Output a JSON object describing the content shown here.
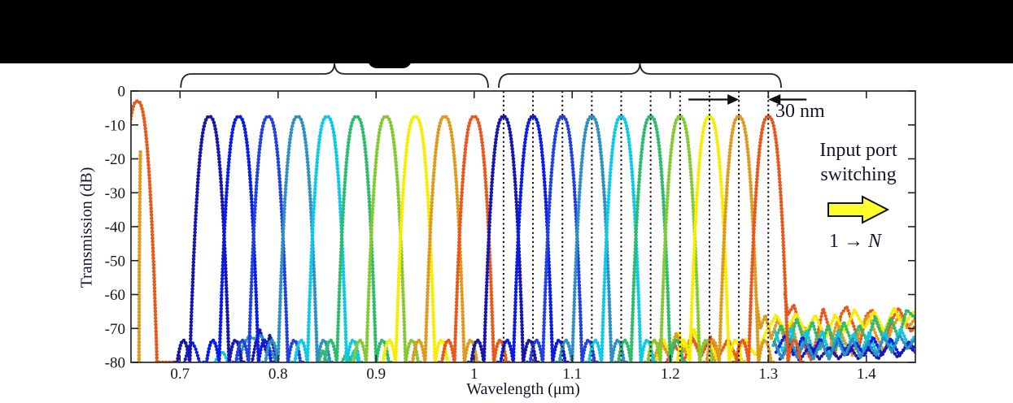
{
  "figure": {
    "y_axis": {
      "title": "Transmission (dB)",
      "tick_labels": [
        "0",
        "-10",
        "-20",
        "-30",
        "-40",
        "-50",
        "-60",
        "-70",
        "-80"
      ]
    },
    "x_axis": {
      "title": "Wavelength (μm)",
      "tick_labels": [
        "0.7",
        "0.8",
        "0.9",
        "1",
        "1.1",
        "1.2",
        "1.3",
        "1.4"
      ]
    },
    "annotations": {
      "spacing_label": "30 nm",
      "input_port_line1": "Input port",
      "input_port_line2": "switching",
      "port_range_prefix": "1 → ",
      "port_range_n": "N",
      "arrow_fill": "#ffff2e",
      "arrow_outline": "#111111"
    },
    "text_color": "#15152a",
    "axis_color": "#333333"
  },
  "chart_data": {
    "type": "line",
    "title": "",
    "xlabel": "Wavelength (μm)",
    "ylabel": "Transmission (dB)",
    "xlim": [
      0.65,
      1.45
    ],
    "ylim": [
      -80,
      0
    ],
    "x_ticks": [
      0.7,
      0.8,
      0.9,
      1.0,
      1.1,
      1.2,
      1.3,
      1.4
    ],
    "y_ticks": [
      0,
      -10,
      -20,
      -30,
      -40,
      -50,
      -60,
      -70,
      -80
    ],
    "grid": false,
    "channel_spacing_nm": 30,
    "channel_peak_db": -7.5,
    "palette": [
      "#1616AC",
      "#0A1BE6",
      "#2140E0",
      "#2E8FC0",
      "#0CC9E8",
      "#2EBB6E",
      "#85C832",
      "#F8EC00",
      "#DD9A1E",
      "#E8581A"
    ],
    "band_shape": {
      "depth_db": 72.5,
      "half_width_um": 0.02,
      "exponent": 2.5,
      "sidelobe_offset_um": 0.0265,
      "sidelobe_peak_db": -73.5,
      "sidelobe_fall_coef": 160000
    },
    "channels": [
      {
        "center_um": 0.73,
        "color_index": 0
      },
      {
        "center_um": 0.76,
        "color_index": 1
      },
      {
        "center_um": 0.79,
        "color_index": 2
      },
      {
        "center_um": 0.82,
        "color_index": 3
      },
      {
        "center_um": 0.85,
        "color_index": 4
      },
      {
        "center_um": 0.88,
        "color_index": 5
      },
      {
        "center_um": 0.91,
        "color_index": 6
      },
      {
        "center_um": 0.94,
        "color_index": 7
      },
      {
        "center_um": 0.97,
        "color_index": 8
      },
      {
        "center_um": 1.0,
        "color_index": 9
      },
      {
        "center_um": 1.03,
        "color_index": 0
      },
      {
        "center_um": 1.06,
        "color_index": 1
      },
      {
        "center_um": 1.09,
        "color_index": 2
      },
      {
        "center_um": 1.12,
        "color_index": 3
      },
      {
        "center_um": 1.15,
        "color_index": 4
      },
      {
        "center_um": 1.18,
        "color_index": 5
      },
      {
        "center_um": 1.21,
        "color_index": 6
      },
      {
        "center_um": 1.24,
        "color_index": 7
      },
      {
        "center_um": 1.27,
        "color_index": 8
      },
      {
        "center_um": 1.3,
        "color_index": 9
      }
    ],
    "extra_peak": {
      "center_um": 0.6565,
      "peak_db": -3,
      "depth_db": 77,
      "half_width_um": 0.02,
      "exponent": 2.5,
      "color": "#E8581A"
    },
    "edge_trace": {
      "color": "#DD9A1E",
      "points": [
        [
          0.6596,
          -18
        ],
        [
          0.659,
          -32
        ],
        [
          0.6585,
          -52
        ],
        [
          0.6581,
          -80
        ]
      ]
    },
    "dotted_lines_um": [
      1.03,
      1.06,
      1.09,
      1.12,
      1.15,
      1.18,
      1.21,
      1.24,
      1.27,
      1.3
    ],
    "measure_between_um": [
      1.27,
      1.3
    ],
    "braces_um": [
      {
        "from": 0.7008,
        "to": 1.0143
      },
      {
        "from": 1.0251,
        "to": 1.3131
      }
    ],
    "noise_traces": [
      {
        "color": "#E8581A",
        "points": [
          [
            1.317,
            -60
          ],
          [
            1.32,
            -66
          ],
          [
            1.326,
            -63
          ],
          [
            1.333,
            -70
          ],
          [
            1.338,
            -76
          ],
          [
            1.344,
            -79.5
          ],
          [
            1.35,
            -72
          ],
          [
            1.356,
            -64
          ],
          [
            1.362,
            -70
          ],
          [
            1.368,
            -78
          ],
          [
            1.374,
            -66
          ],
          [
            1.38,
            -63.5
          ],
          [
            1.388,
            -70
          ],
          [
            1.393,
            -75
          ],
          [
            1.4,
            -66
          ],
          [
            1.406,
            -64.5
          ],
          [
            1.413,
            -70
          ],
          [
            1.42,
            -73
          ],
          [
            1.427,
            -67
          ],
          [
            1.433,
            -64
          ],
          [
            1.44,
            -68
          ],
          [
            1.446,
            -71
          ],
          [
            1.45,
            -69
          ]
        ]
      },
      {
        "color": "#DD9A1E",
        "points": [
          [
            1.288,
            -62
          ],
          [
            1.292,
            -70
          ],
          [
            1.297,
            -66
          ],
          [
            1.303,
            -73
          ],
          [
            1.31,
            -67
          ],
          [
            1.317,
            -74
          ],
          [
            1.324,
            -68
          ],
          [
            1.331,
            -77
          ],
          [
            1.338,
            -70
          ],
          [
            1.346,
            -78
          ],
          [
            1.354,
            -70
          ],
          [
            1.362,
            -77
          ],
          [
            1.37,
            -68
          ],
          [
            1.378,
            -74
          ],
          [
            1.386,
            -78
          ],
          [
            1.394,
            -70
          ],
          [
            1.402,
            -66
          ],
          [
            1.41,
            -72
          ],
          [
            1.418,
            -77
          ],
          [
            1.426,
            -70
          ],
          [
            1.434,
            -66
          ],
          [
            1.442,
            -70
          ],
          [
            1.45,
            -67
          ]
        ]
      },
      {
        "color": "#F8EC00",
        "points": [
          [
            1.185,
            -80
          ],
          [
            1.193,
            -73
          ],
          [
            1.2,
            -78
          ],
          [
            1.208,
            -71
          ],
          [
            1.216,
            -77
          ],
          [
            1.224,
            -70
          ],
          [
            1.232,
            -77
          ],
          [
            1.24,
            -73
          ],
          [
            1.248,
            -79
          ],
          [
            1.257,
            -74
          ],
          [
            1.266,
            -79
          ],
          [
            1.276,
            -73
          ],
          [
            1.287,
            -78
          ],
          [
            1.298,
            -71
          ],
          [
            1.308,
            -66
          ],
          [
            1.318,
            -71
          ],
          [
            1.328,
            -65.5
          ],
          [
            1.338,
            -71
          ],
          [
            1.348,
            -66
          ],
          [
            1.358,
            -73
          ],
          [
            1.368,
            -66
          ],
          [
            1.378,
            -71
          ],
          [
            1.388,
            -64.5
          ],
          [
            1.398,
            -70
          ],
          [
            1.408,
            -65
          ],
          [
            1.418,
            -71
          ],
          [
            1.428,
            -64
          ],
          [
            1.438,
            -69
          ],
          [
            1.448,
            -65
          ],
          [
            1.45,
            -66
          ]
        ]
      },
      {
        "color": "#2EBB6E",
        "points": [
          [
            1.305,
            -75
          ],
          [
            1.313,
            -69
          ],
          [
            1.321,
            -75
          ],
          [
            1.329,
            -67
          ],
          [
            1.337,
            -74
          ],
          [
            1.345,
            -68
          ],
          [
            1.353,
            -76
          ],
          [
            1.361,
            -69
          ],
          [
            1.369,
            -76
          ],
          [
            1.377,
            -68
          ],
          [
            1.385,
            -74
          ],
          [
            1.393,
            -69
          ],
          [
            1.401,
            -74
          ],
          [
            1.409,
            -66.5
          ],
          [
            1.417,
            -73
          ],
          [
            1.425,
            -67
          ],
          [
            1.433,
            -73
          ],
          [
            1.441,
            -64.5
          ],
          [
            1.45,
            -67
          ]
        ]
      },
      {
        "color": "#0CC9E8",
        "points": [
          [
            1.307,
            -71
          ],
          [
            1.315,
            -77
          ],
          [
            1.323,
            -70
          ],
          [
            1.331,
            -77
          ],
          [
            1.339,
            -70.5
          ],
          [
            1.347,
            -78
          ],
          [
            1.355,
            -71
          ],
          [
            1.363,
            -78
          ],
          [
            1.371,
            -71
          ],
          [
            1.379,
            -77
          ],
          [
            1.387,
            -71.5
          ],
          [
            1.395,
            -77
          ],
          [
            1.403,
            -71
          ],
          [
            1.411,
            -78
          ],
          [
            1.419,
            -71
          ],
          [
            1.427,
            -76
          ],
          [
            1.435,
            -70
          ],
          [
            1.443,
            -75
          ],
          [
            1.45,
            -72
          ]
        ]
      },
      {
        "color": "#0A1BE6",
        "points": [
          [
            1.308,
            -77
          ],
          [
            1.317,
            -72
          ],
          [
            1.326,
            -78
          ],
          [
            1.335,
            -72.5
          ],
          [
            1.344,
            -78
          ],
          [
            1.353,
            -73
          ],
          [
            1.362,
            -79
          ],
          [
            1.371,
            -73
          ],
          [
            1.38,
            -78
          ],
          [
            1.389,
            -74
          ],
          [
            1.398,
            -78
          ],
          [
            1.407,
            -72.5
          ],
          [
            1.416,
            -78
          ],
          [
            1.425,
            -73
          ],
          [
            1.434,
            -78
          ],
          [
            1.443,
            -74
          ],
          [
            1.45,
            -76
          ]
        ]
      },
      {
        "color": "#1616AC",
        "points": [
          [
            1.312,
            -79
          ],
          [
            1.322,
            -75
          ],
          [
            1.332,
            -79.5
          ],
          [
            1.342,
            -75
          ],
          [
            1.352,
            -79
          ],
          [
            1.362,
            -75.5
          ],
          [
            1.372,
            -79
          ],
          [
            1.382,
            -75
          ],
          [
            1.392,
            -79
          ],
          [
            1.402,
            -76
          ],
          [
            1.412,
            -79
          ],
          [
            1.422,
            -75
          ],
          [
            1.432,
            -78.5
          ],
          [
            1.442,
            -75
          ],
          [
            1.45,
            -77
          ]
        ]
      },
      {
        "color": "#2E8FC0",
        "points": [
          [
            1.306,
            -74
          ],
          [
            1.314,
            -79
          ],
          [
            1.322,
            -73
          ],
          [
            1.33,
            -78.5
          ],
          [
            1.338,
            -73.5
          ],
          [
            1.346,
            -79
          ],
          [
            1.354,
            -74
          ],
          [
            1.362,
            -79
          ],
          [
            1.37,
            -73
          ],
          [
            1.378,
            -78
          ],
          [
            1.386,
            -73
          ],
          [
            1.394,
            -78.5
          ],
          [
            1.402,
            -74
          ],
          [
            1.41,
            -78
          ],
          [
            1.418,
            -72.5
          ],
          [
            1.426,
            -77
          ],
          [
            1.434,
            -72
          ],
          [
            1.442,
            -76
          ],
          [
            1.45,
            -73
          ]
        ]
      },
      {
        "color": "#0A1BE6",
        "points": [
          [
            0.7045,
            -80
          ],
          [
            0.709,
            -75.5
          ],
          [
            0.7125,
            -74
          ],
          [
            0.716,
            -76
          ],
          [
            0.72,
            -80
          ]
        ]
      },
      {
        "color": "#1616AC",
        "points": [
          [
            0.7735,
            -80
          ],
          [
            0.778,
            -73
          ],
          [
            0.7815,
            -70.5
          ],
          [
            0.785,
            -74
          ],
          [
            0.788,
            -77
          ],
          [
            0.7915,
            -72
          ],
          [
            0.795,
            -75
          ],
          [
            0.799,
            -80
          ]
        ]
      },
      {
        "color": "#2E8FC0",
        "points": [
          [
            0.76,
            -80
          ],
          [
            0.765,
            -74.5
          ],
          [
            0.77,
            -72.5
          ],
          [
            0.776,
            -73
          ],
          [
            0.782,
            -72
          ],
          [
            0.788,
            -74
          ],
          [
            0.7935,
            -77
          ],
          [
            0.798,
            -80
          ]
        ]
      },
      {
        "color": "#0CC9E8",
        "points": [
          [
            0.7355,
            -80
          ],
          [
            0.74,
            -77.5
          ],
          [
            0.7445,
            -77
          ],
          [
            0.749,
            -80
          ]
        ]
      },
      {
        "color": "#0CC9E8",
        "points": [
          [
            0.873,
            -80
          ],
          [
            0.8775,
            -76.5
          ],
          [
            0.882,
            -80
          ]
        ]
      },
      {
        "color": "#2EBB6E",
        "points": [
          [
            0.841,
            -80
          ],
          [
            0.8455,
            -76.5
          ],
          [
            0.85,
            -80
          ]
        ]
      },
      {
        "color": "#2EBB6E",
        "points": [
          [
            0.865,
            -80
          ],
          [
            0.87,
            -77
          ],
          [
            0.875,
            -80
          ]
        ]
      },
      {
        "color": "#DD9A1E",
        "points": [
          [
            1.182,
            -80
          ],
          [
            1.19,
            -73.5
          ],
          [
            1.198,
            -78
          ],
          [
            1.206,
            -71.5
          ],
          [
            1.214,
            -77
          ],
          [
            1.222,
            -72
          ],
          [
            1.23,
            -78
          ],
          [
            1.238,
            -74
          ],
          [
            1.246,
            -80
          ]
        ]
      },
      {
        "color": "#E8581A",
        "points": [
          [
            1.196,
            -80
          ],
          [
            1.205,
            -75
          ],
          [
            1.214,
            -79.5
          ],
          [
            1.223,
            -73
          ],
          [
            1.232,
            -78
          ],
          [
            1.241,
            -72.5
          ],
          [
            1.25,
            -78
          ],
          [
            1.259,
            -73
          ],
          [
            1.268,
            -79
          ],
          [
            1.277,
            -80
          ]
        ]
      }
    ]
  }
}
